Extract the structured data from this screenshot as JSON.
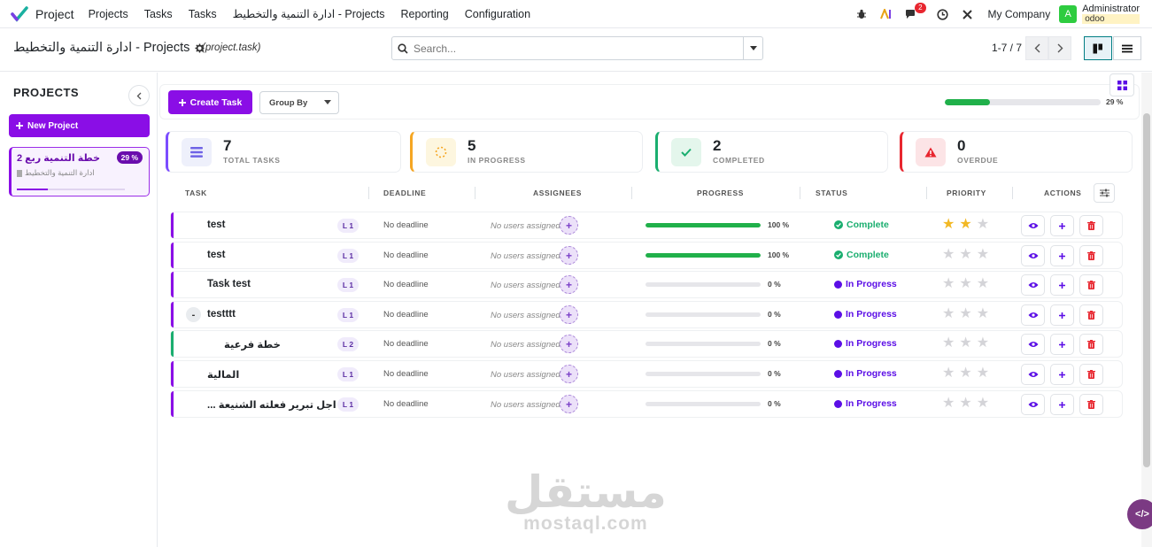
{
  "navbar": {
    "app_name": "Project",
    "menu": [
      "Projects",
      "Tasks",
      "Tasks",
      "ادارة التنمية والتخطيط - Projects",
      "Reporting",
      "Configuration"
    ],
    "messages_count": "2",
    "company": "My Company",
    "user_initial": "A",
    "user_name": "Administrator",
    "user_db": "odoo"
  },
  "control": {
    "breadcrumb": "ادارة التنمية والتخطيط - Projects",
    "model": "(project.task)",
    "search_placeholder": "Search...",
    "pager": "1-7 / 7"
  },
  "sidebar": {
    "title": "PROJECTS",
    "new_project_label": "New Project",
    "projects": [
      {
        "name": "خطة التنمية ربع 2",
        "percent_label": "29 %",
        "subtitle": "ادارة التنمية والتخطيط",
        "progress": 0.29
      }
    ]
  },
  "toolbar": {
    "create_label": "Create Task",
    "groupby_label": "Group By",
    "overall_progress": 0.29,
    "overall_label": "29 %"
  },
  "stats": [
    {
      "value": "7",
      "label": "TOTAL TASKS",
      "color": "#7c4dff"
    },
    {
      "value": "5",
      "label": "IN PROGRESS",
      "color": "#f5a623"
    },
    {
      "value": "2",
      "label": "COMPLETED",
      "color": "#1aae6f"
    },
    {
      "value": "0",
      "label": "OVERDUE",
      "color": "#e8262f"
    }
  ],
  "table": {
    "headers": {
      "task": "TASK",
      "deadline": "DEADLINE",
      "assignees": "ASSIGNEES",
      "progress": "PROGRESS",
      "status": "STATUS",
      "priority": "PRIORITY",
      "actions": "ACTIONS"
    },
    "rows": [
      {
        "name": "test",
        "level": "L 1",
        "deadline": "No deadline",
        "assignees": "No users assigned",
        "progress": 1.0,
        "progress_label": "100 %",
        "status": "Complete",
        "priority": 2,
        "accent": "#8a0ee6"
      },
      {
        "name": "test",
        "level": "L 1",
        "deadline": "No deadline",
        "assignees": "No users assigned",
        "progress": 1.0,
        "progress_label": "100 %",
        "status": "Complete",
        "priority": 0,
        "accent": "#8a0ee6"
      },
      {
        "name": "Task test",
        "level": "L 1",
        "deadline": "No deadline",
        "assignees": "No users assigned",
        "progress": 0.0,
        "progress_label": "0 %",
        "status": "In Progress",
        "priority": 0,
        "accent": "#8a0ee6"
      },
      {
        "name": "testttt",
        "level": "L 1",
        "deadline": "No deadline",
        "assignees": "No users assigned",
        "progress": 0.0,
        "progress_label": "0 %",
        "status": "In Progress",
        "priority": 0,
        "accent": "#8a0ee6",
        "expand": "-"
      },
      {
        "name": "خطة فرعية",
        "level": "L 2",
        "deadline": "No deadline",
        "assignees": "No users assigned",
        "progress": 0.0,
        "progress_label": "0 %",
        "status": "In Progress",
        "priority": 0,
        "accent": "#1aae6f"
      },
      {
        "name": "المالية",
        "level": "L 1",
        "deadline": "No deadline",
        "assignees": "No users assigned",
        "progress": 0.0,
        "progress_label": "0 %",
        "status": "In Progress",
        "priority": 0,
        "accent": "#8a0ee6"
      },
      {
        "name": "من اجل تبرير فعلته الشنيعة ...",
        "level": "L 1",
        "deadline": "No deadline",
        "assignees": "No users assigned",
        "progress": 0.0,
        "progress_label": "0 %",
        "status": "In Progress",
        "priority": 0,
        "accent": "#8a0ee6"
      }
    ]
  },
  "watermark": {
    "arabic": "مستقل",
    "latin": "mostaql.com"
  },
  "colors": {
    "brand": "#8a0ee6",
    "complete": "#1aae6f",
    "in_progress": "#5b0ee6",
    "progress_fill": "#20b04a"
  }
}
